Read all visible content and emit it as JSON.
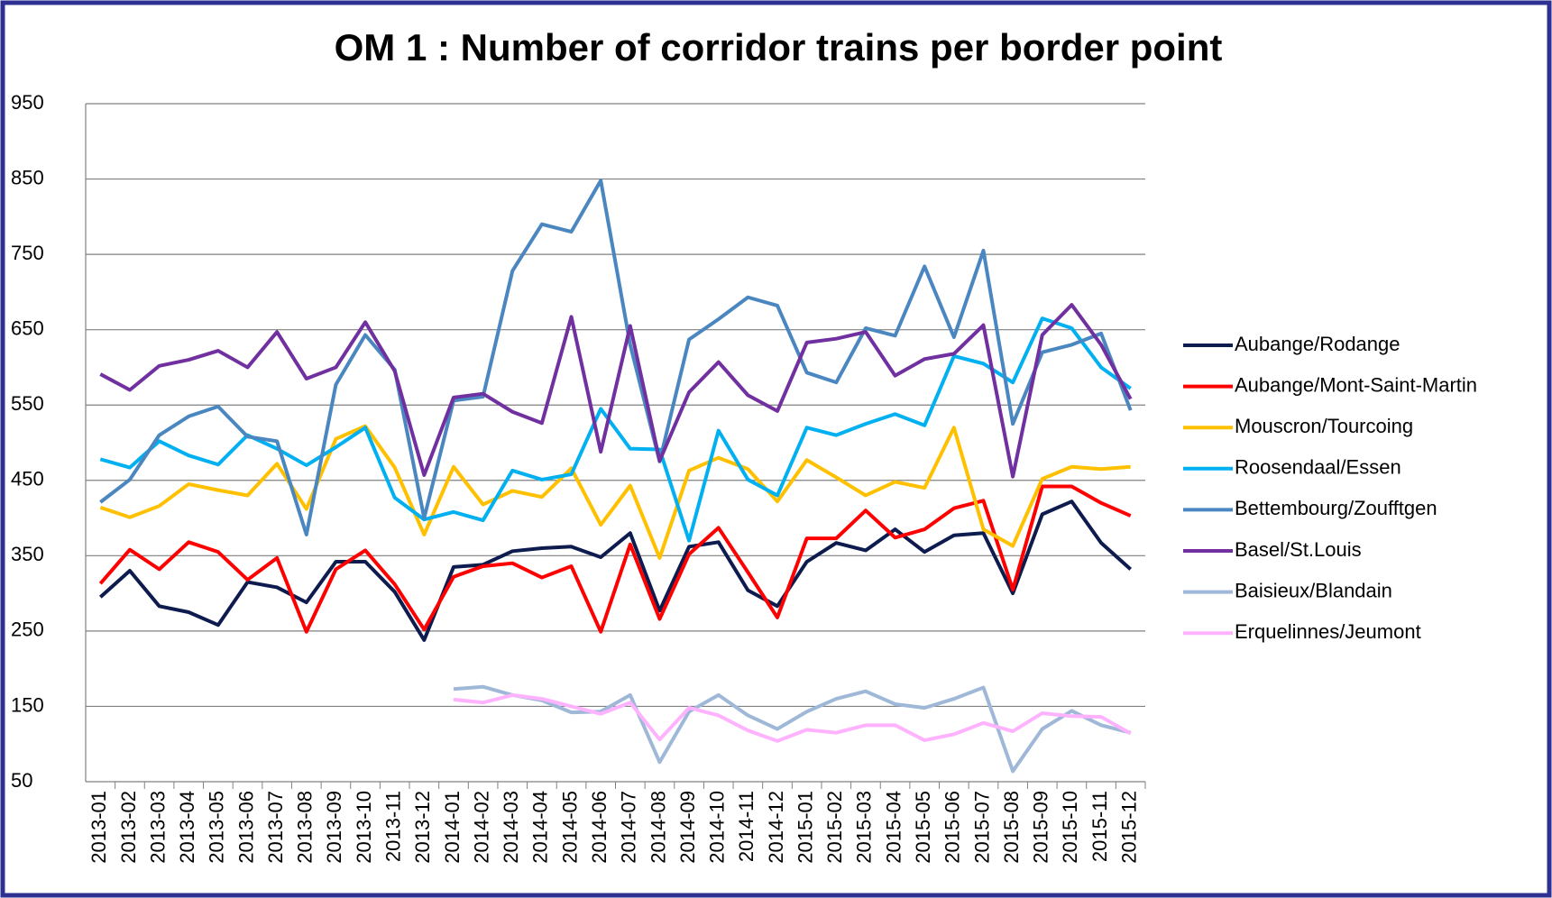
{
  "chart_data": {
    "type": "line",
    "title": "OM 1 : Number of corridor trains per border point",
    "x": [
      "2013-01",
      "2013-02",
      "2013-03",
      "2013-04",
      "2013-05",
      "2013-06",
      "2013-07",
      "2013-08",
      "2013-09",
      "2013-10",
      "2013-11",
      "2013-12",
      "2014-01",
      "2014-02",
      "2014-03",
      "2014-04",
      "2014-05",
      "2014-06",
      "2014-07",
      "2014-08",
      "2014-09",
      "2014-10",
      "2014-11",
      "2014-12",
      "2015-01",
      "2015-02",
      "2015-03",
      "2015-04",
      "2015-05",
      "2015-06",
      "2015-07",
      "2015-08",
      "2015-09",
      "2015-10",
      "2015-11",
      "2015-12"
    ],
    "ylim": [
      50,
      950
    ],
    "yticks": [
      50,
      150,
      250,
      350,
      450,
      550,
      650,
      750,
      850,
      950
    ],
    "grid": true,
    "legend": "right",
    "series": [
      {
        "name": "Aubange/Rodange",
        "color": "#0d1b4f",
        "values": [
          295,
          330,
          283,
          275,
          258,
          315,
          308,
          288,
          342,
          342,
          302,
          238,
          335,
          338,
          356,
          360,
          362,
          348,
          380,
          277,
          362,
          368,
          304,
          283,
          342,
          367,
          357,
          385,
          355,
          377,
          380,
          300,
          405,
          422,
          367,
          332
        ]
      },
      {
        "name": "Aubange/Mont-Saint-Martin",
        "color": "#ff0000",
        "values": [
          313,
          358,
          332,
          368,
          355,
          318,
          347,
          249,
          332,
          357,
          312,
          252,
          322,
          336,
          340,
          321,
          336,
          249,
          365,
          266,
          352,
          387,
          328,
          268,
          373,
          373,
          410,
          374,
          385,
          413,
          423,
          305,
          442,
          442,
          420,
          403
        ]
      },
      {
        "name": "Mouscron/Tourcoing",
        "color": "#ffc000",
        "values": [
          414,
          401,
          416,
          445,
          437,
          430,
          472,
          412,
          505,
          522,
          467,
          378,
          468,
          418,
          436,
          428,
          466,
          391,
          443,
          347,
          463,
          480,
          465,
          422,
          477,
          454,
          430,
          448,
          440,
          520,
          385,
          363,
          452,
          468,
          465,
          468
        ]
      },
      {
        "name": "Roosendaal/Essen",
        "color": "#00b0f0",
        "values": [
          478,
          467,
          502,
          483,
          471,
          510,
          492,
          470,
          494,
          520,
          427,
          398,
          408,
          397,
          463,
          451,
          458,
          545,
          492,
          491,
          370,
          516,
          451,
          430,
          520,
          510,
          525,
          538,
          523,
          615,
          605,
          580,
          665,
          652,
          600,
          572
        ]
      },
      {
        "name": "Bettembourg/Zoufftgen",
        "color": "#4a86c0",
        "values": [
          421,
          451,
          510,
          535,
          548,
          508,
          502,
          378,
          577,
          643,
          597,
          400,
          556,
          561,
          728,
          790,
          780,
          848,
          630,
          475,
          637,
          664,
          693,
          682,
          593,
          580,
          652,
          642,
          734,
          640,
          755,
          525,
          620,
          630,
          645,
          543
        ]
      },
      {
        "name": "Basel/St.Louis",
        "color": "#7030a0",
        "values": [
          591,
          570,
          602,
          610,
          622,
          600,
          647,
          585,
          600,
          660,
          595,
          457,
          560,
          565,
          541,
          526,
          667,
          488,
          655,
          476,
          567,
          607,
          563,
          542,
          633,
          638,
          647,
          589,
          611,
          618,
          656,
          455,
          643,
          683,
          630,
          558
        ]
      },
      {
        "name": "Baisieux/Blandain",
        "color": "#9fb8d8",
        "values": [
          null,
          null,
          null,
          null,
          null,
          null,
          null,
          null,
          null,
          null,
          null,
          null,
          173,
          176,
          165,
          158,
          142,
          143,
          165,
          76,
          143,
          165,
          138,
          120,
          143,
          160,
          170,
          153,
          148,
          160,
          175,
          64,
          120,
          144,
          125,
          115
        ]
      },
      {
        "name": "Erquelinnes/Jeumont",
        "color": "#ffb3ff",
        "values": [
          null,
          null,
          null,
          null,
          null,
          null,
          null,
          null,
          null,
          null,
          null,
          null,
          159,
          155,
          165,
          160,
          150,
          140,
          155,
          106,
          148,
          138,
          118,
          104,
          119,
          115,
          125,
          125,
          105,
          113,
          128,
          117,
          141,
          137,
          136,
          114
        ]
      }
    ]
  }
}
